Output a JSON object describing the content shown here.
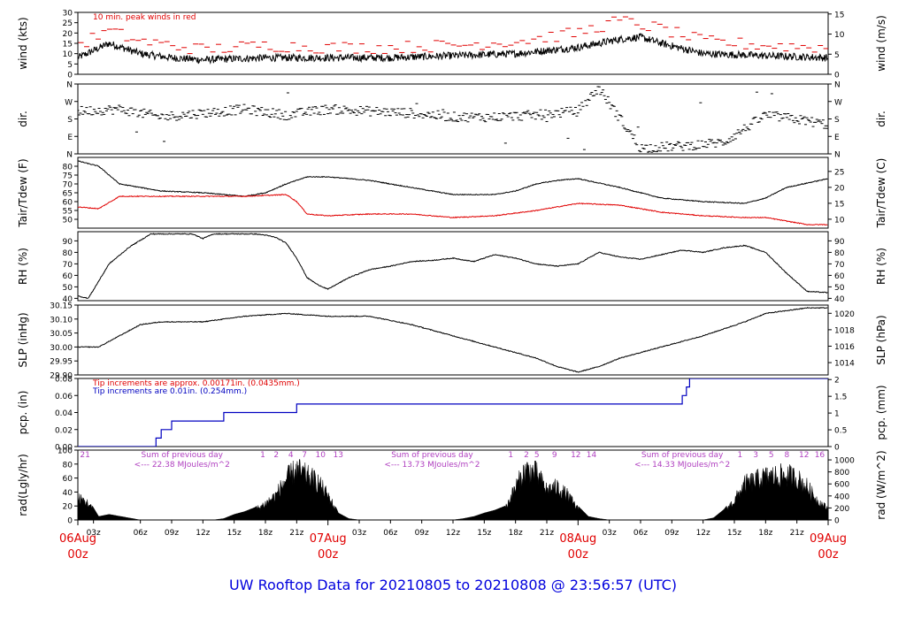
{
  "footer": {
    "title": "UW Rooftop Data for 20210805  to  20210808 @ 23:56:57  (UTC)"
  },
  "colors": {
    "frame": "#000000",
    "red": "#e00000",
    "blue": "#0000c0",
    "purple": "#b040c0",
    "title": "#0000dd"
  },
  "chart_data": [
    {
      "id": "wind",
      "type": "line",
      "ylabel": "wind (kts)",
      "ylabel_right": "wind (m/s)",
      "ylim": [
        0,
        30
      ],
      "yticks": [
        "0",
        "5",
        "10",
        "15",
        "20",
        "25",
        "30"
      ],
      "right_ylim": [
        0,
        15.4
      ],
      "right_yticks": [
        "0",
        "5",
        "10",
        "15"
      ],
      "annotation": "10 min. peak winds in red",
      "series": [
        {
          "color": "#000000",
          "x_hours": [
            0,
            3,
            6,
            9,
            12,
            18,
            24,
            30,
            36,
            42,
            48,
            52,
            54,
            56,
            60,
            66,
            72
          ],
          "values": [
            8,
            15,
            10,
            8,
            7,
            8,
            8,
            8,
            9,
            10,
            13,
            17,
            18,
            15,
            10,
            9,
            8
          ]
        },
        {
          "color": "#e00000",
          "x_hours": [
            0,
            3,
            6,
            9,
            12,
            18,
            24,
            30,
            36,
            42,
            48,
            52,
            54,
            56,
            60,
            66,
            72
          ],
          "values": [
            14,
            21,
            16,
            14,
            12,
            14,
            13,
            13,
            14,
            16,
            20,
            26,
            24,
            22,
            16,
            14,
            13
          ]
        }
      ]
    },
    {
      "id": "dir",
      "type": "scatter",
      "ylabel": "dir.",
      "ylabel_right": "dir.",
      "ylim": [
        0,
        360
      ],
      "yticks": [
        "N",
        "E",
        "S",
        "W",
        "N"
      ],
      "right_yticks": [
        "N",
        "E",
        "S",
        "W",
        "N"
      ],
      "series": [
        {
          "color": "#000000",
          "x_hours": [
            0,
            4,
            8,
            12,
            16,
            20,
            24,
            28,
            32,
            36,
            40,
            44,
            48,
            50,
            54,
            58,
            62,
            66,
            70,
            72
          ],
          "values": [
            220,
            230,
            190,
            210,
            230,
            200,
            230,
            220,
            210,
            190,
            190,
            200,
            220,
            340,
            30,
            40,
            60,
            200,
            170,
            150
          ]
        }
      ]
    },
    {
      "id": "temp",
      "type": "line",
      "ylabel": "Tair/Tdew (F)",
      "ylabel_right": "Tair/Tdew (C)",
      "ylim": [
        45,
        85
      ],
      "yticks": [
        "50",
        "55",
        "60",
        "65",
        "70",
        "75",
        "80"
      ],
      "right_ylim": [
        7.2,
        29.4
      ],
      "right_yticks": [
        "10",
        "15",
        "20",
        "25"
      ],
      "series": [
        {
          "color": "#000000",
          "x_hours": [
            0,
            2,
            4,
            8,
            12,
            16,
            18,
            20,
            22,
            24,
            28,
            32,
            36,
            40,
            42,
            44,
            46,
            48,
            52,
            56,
            60,
            64,
            66,
            68,
            72
          ],
          "values": [
            83,
            80,
            70,
            66,
            65,
            63,
            65,
            70,
            74,
            74,
            72,
            68,
            64,
            64,
            66,
            70,
            72,
            73,
            68,
            62,
            60,
            59,
            62,
            68,
            73
          ]
        },
        {
          "color": "#e00000",
          "x_hours": [
            0,
            2,
            4,
            8,
            12,
            16,
            20,
            21,
            22,
            24,
            28,
            32,
            36,
            40,
            44,
            48,
            52,
            56,
            60,
            64,
            66,
            68,
            70,
            72
          ],
          "values": [
            57,
            56,
            63,
            63,
            63,
            63,
            64,
            60,
            53,
            52,
            53,
            53,
            51,
            52,
            55,
            59,
            58,
            54,
            52,
            51,
            51,
            49,
            47,
            47
          ]
        }
      ]
    },
    {
      "id": "rh",
      "type": "line",
      "ylabel": "RH (%)",
      "ylabel_right": "RH (%)",
      "ylim": [
        38,
        98
      ],
      "yticks": [
        "40",
        "50",
        "60",
        "70",
        "80",
        "90"
      ],
      "right_yticks": [
        "40",
        "50",
        "60",
        "70",
        "80",
        "90"
      ],
      "series": [
        {
          "color": "#000000",
          "x_hours": [
            0,
            1,
            3,
            5,
            7,
            9,
            11,
            12,
            13,
            15,
            17,
            18,
            19,
            20,
            21,
            22,
            23,
            24,
            26,
            28,
            30,
            32,
            34,
            36,
            38,
            40,
            42,
            44,
            46,
            48,
            50,
            52,
            54,
            56,
            58,
            60,
            62,
            64,
            66,
            68,
            70,
            72
          ],
          "values": [
            42,
            40,
            70,
            85,
            96,
            96,
            96,
            92,
            96,
            96,
            96,
            95,
            93,
            88,
            75,
            58,
            52,
            48,
            58,
            65,
            68,
            72,
            73,
            75,
            72,
            78,
            75,
            70,
            68,
            70,
            80,
            76,
            74,
            78,
            82,
            80,
            84,
            86,
            80,
            62,
            46,
            45
          ]
        }
      ]
    },
    {
      "id": "slp",
      "type": "line",
      "ylabel": "SLP (inHg)",
      "ylabel_right": "SLP (hPa)",
      "ylim": [
        29.9,
        30.15
      ],
      "yticks": [
        "29.90",
        "29.95",
        "30.00",
        "30.05",
        "30.10",
        "30.15"
      ],
      "right_ylim": [
        1012.5,
        1021
      ],
      "right_yticks": [
        "1014",
        "1016",
        "1018",
        "1020"
      ],
      "series": [
        {
          "color": "#000000",
          "x_hours": [
            0,
            2,
            4,
            6,
            8,
            12,
            16,
            20,
            24,
            28,
            32,
            36,
            40,
            44,
            46,
            48,
            50,
            52,
            56,
            60,
            64,
            66,
            68,
            70,
            72
          ],
          "values": [
            30.0,
            30.0,
            30.04,
            30.08,
            30.09,
            30.09,
            30.11,
            30.12,
            30.11,
            30.11,
            30.08,
            30.04,
            30.0,
            29.96,
            29.93,
            29.91,
            29.93,
            29.96,
            30.0,
            30.04,
            30.09,
            30.12,
            30.13,
            30.14,
            30.14
          ]
        }
      ]
    },
    {
      "id": "pcp",
      "type": "line",
      "ylabel": "pcp. (in)",
      "ylabel_right": "pcp. (mm)",
      "ylim": [
        0,
        0.08
      ],
      "yticks": [
        "0.00",
        "0.02",
        "0.04",
        "0.06",
        "0.08"
      ],
      "right_ylim": [
        0,
        2.032
      ],
      "right_yticks": [
        "0",
        "0.5",
        "1",
        "1.5",
        "2"
      ],
      "annotations": [
        "Tip increments are approx. 0.00171in. (0.0435mm.)",
        "Tip increments are 0.01in. (0.254mm.)"
      ],
      "series": [
        {
          "color": "#0000c0",
          "x_hours": [
            0,
            7.5,
            7.5,
            8,
            8,
            9,
            9,
            14,
            14,
            21,
            21,
            58,
            58,
            58.4,
            58.4,
            58.7,
            58.7,
            72
          ],
          "values": [
            0,
            0,
            0.01,
            0.01,
            0.02,
            0.02,
            0.03,
            0.03,
            0.04,
            0.04,
            0.05,
            0.05,
            0.06,
            0.06,
            0.07,
            0.07,
            0.08,
            0.08
          ]
        }
      ]
    },
    {
      "id": "rad",
      "type": "area",
      "ylabel": "rad(Lgly/hr)",
      "ylabel_right": "rad (W/m^2)",
      "ylim": [
        0,
        100
      ],
      "yticks": [
        "0",
        "20",
        "40",
        "60",
        "80",
        "100"
      ],
      "right_ylim": [
        0,
        1163
      ],
      "right_yticks": [
        "0",
        "200",
        "400",
        "600",
        "800",
        "1000"
      ],
      "day_notes": [
        {
          "x_hour": 10,
          "text": "Sum of previous day",
          "sub": "<--- 22.38 MJoules/m^2"
        },
        {
          "x_hour": 34,
          "text": "Sum of previous day",
          "sub": "<--- 13.73 MJoules/m^2"
        },
        {
          "x_hour": 58,
          "text": "Sum of previous day",
          "sub": "<--- 14.33 MJoules/m^2"
        }
      ],
      "hour_marks": [
        {
          "x_hour": 0.2,
          "text": "21"
        },
        {
          "x_hour": 17.5,
          "text": "1"
        },
        {
          "x_hour": 18.8,
          "text": "2"
        },
        {
          "x_hour": 20.2,
          "text": "4"
        },
        {
          "x_hour": 21.5,
          "text": "7"
        },
        {
          "x_hour": 22.8,
          "text": "10"
        },
        {
          "x_hour": 24.5,
          "text": "13"
        },
        {
          "x_hour": 41.3,
          "text": "1"
        },
        {
          "x_hour": 42.8,
          "text": "2"
        },
        {
          "x_hour": 43.8,
          "text": "5"
        },
        {
          "x_hour": 45.5,
          "text": "9"
        },
        {
          "x_hour": 47.3,
          "text": "12"
        },
        {
          "x_hour": 48.8,
          "text": "14"
        },
        {
          "x_hour": 63.3,
          "text": "1"
        },
        {
          "x_hour": 64.8,
          "text": "3"
        },
        {
          "x_hour": 66.3,
          "text": "5"
        },
        {
          "x_hour": 67.8,
          "text": "8"
        },
        {
          "x_hour": 69.2,
          "text": "12"
        },
        {
          "x_hour": 70.7,
          "text": "16"
        }
      ],
      "series": [
        {
          "color": "#000000",
          "x_hours": [
            0,
            1,
            2,
            3,
            6,
            12,
            13,
            14,
            15,
            16,
            17,
            18,
            19,
            20,
            21,
            22,
            23,
            24,
            25,
            26,
            27,
            28,
            36,
            37,
            38,
            39,
            40,
            41,
            42,
            43,
            44,
            45,
            46,
            47,
            48,
            49,
            50,
            51,
            52,
            60,
            61,
            62,
            63,
            64,
            65,
            66,
            67,
            68,
            69,
            70,
            71,
            72
          ],
          "values": [
            40,
            30,
            5,
            8,
            0,
            0,
            0,
            2,
            8,
            12,
            18,
            30,
            45,
            75,
            92,
            80,
            70,
            45,
            10,
            2,
            0,
            0,
            0,
            2,
            5,
            10,
            14,
            20,
            60,
            92,
            85,
            55,
            60,
            45,
            20,
            5,
            2,
            0,
            0,
            0,
            3,
            15,
            35,
            65,
            72,
            78,
            80,
            82,
            76,
            60,
            35,
            20
          ]
        }
      ]
    }
  ],
  "xaxis": {
    "ticks": [
      {
        "x_hour": 1.5,
        "label": "03z"
      },
      {
        "x_hour": 6,
        "label": "06z"
      },
      {
        "x_hour": 9,
        "label": "09z"
      },
      {
        "x_hour": 12,
        "label": "12z"
      },
      {
        "x_hour": 15,
        "label": "15z"
      },
      {
        "x_hour": 18,
        "label": "18z"
      },
      {
        "x_hour": 21,
        "label": "21z"
      },
      {
        "x_hour": 27,
        "label": "03z"
      },
      {
        "x_hour": 30,
        "label": "06z"
      },
      {
        "x_hour": 33,
        "label": "09z"
      },
      {
        "x_hour": 36,
        "label": "12z"
      },
      {
        "x_hour": 39,
        "label": "15z"
      },
      {
        "x_hour": 42,
        "label": "18z"
      },
      {
        "x_hour": 45,
        "label": "21z"
      },
      {
        "x_hour": 51,
        "label": "03z"
      },
      {
        "x_hour": 54,
        "label": "06z"
      },
      {
        "x_hour": 57,
        "label": "09z"
      },
      {
        "x_hour": 60,
        "label": "12z"
      },
      {
        "x_hour": 63,
        "label": "15z"
      },
      {
        "x_hour": 66,
        "label": "18z"
      },
      {
        "x_hour": 69,
        "label": "21z"
      }
    ],
    "days": [
      {
        "x_hour": 0,
        "label": "06Aug",
        "sub": "00z"
      },
      {
        "x_hour": 24,
        "label": "07Aug",
        "sub": "00z"
      },
      {
        "x_hour": 48,
        "label": "08Aug",
        "sub": "00z"
      },
      {
        "x_hour": 72,
        "label": "09Aug",
        "sub": "00z"
      }
    ]
  }
}
